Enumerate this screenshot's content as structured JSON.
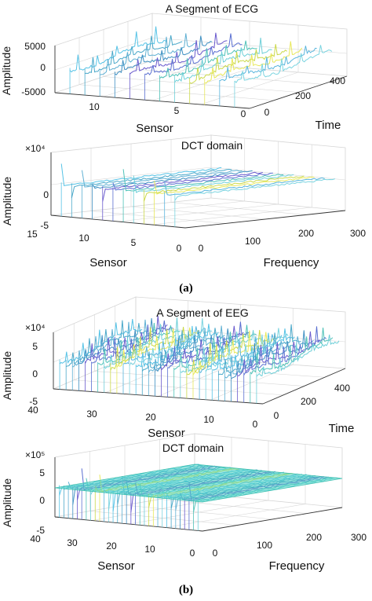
{
  "captions": {
    "a": "(a)",
    "b": "(b)"
  },
  "chart_data": [
    {
      "type": "line3d",
      "title": "A Segment of ECG",
      "xlabel": "Time",
      "ylabel": "Sensor",
      "zlabel": "Amplitude",
      "x_ticks": [
        "0",
        "200",
        "400"
      ],
      "y_ticks": [
        "0",
        "5",
        "10"
      ],
      "z_ticks": [
        "5000",
        "0",
        "-5000"
      ],
      "x_range": [
        0,
        400
      ],
      "y_range": [
        0,
        12
      ],
      "z_range": [
        -5000,
        5000
      ],
      "num_series": 12
    },
    {
      "type": "line3d",
      "title": "DCT domain",
      "exponent": "×10⁴",
      "xlabel": "Frequency",
      "ylabel": "Sensor",
      "zlabel": "Amplitude",
      "x_ticks": [
        "0",
        "100",
        "200",
        "300"
      ],
      "y_ticks": [
        "0",
        "5",
        "10",
        "15"
      ],
      "z_ticks": [
        "0",
        "-5"
      ],
      "x_range": [
        0,
        300
      ],
      "y_range": [
        0,
        15
      ],
      "z_range": [
        -5,
        5
      ],
      "num_series": 12
    },
    {
      "type": "line3d",
      "title": "A Segment of EEG",
      "exponent": "×10⁴",
      "xlabel": "Time",
      "ylabel": "Sensor",
      "zlabel": "Amplitude",
      "x_ticks": [
        "0",
        "200",
        "400"
      ],
      "y_ticks": [
        "0",
        "10",
        "20",
        "30",
        "40"
      ],
      "z_ticks": [
        "5",
        "0",
        "-5"
      ],
      "x_range": [
        0,
        400
      ],
      "y_range": [
        0,
        40
      ],
      "z_range": [
        -5,
        5
      ],
      "num_series": 32
    },
    {
      "type": "line3d",
      "title": "DCT domain",
      "exponent": "×10⁵",
      "xlabel": "Frequency",
      "ylabel": "Sensor",
      "zlabel": "Amplitude",
      "x_ticks": [
        "0",
        "100",
        "200",
        "300"
      ],
      "y_ticks": [
        "0",
        "10",
        "20",
        "30",
        "40"
      ],
      "z_ticks": [
        "5",
        "0",
        "-5"
      ],
      "x_range": [
        0,
        300
      ],
      "y_range": [
        0,
        40
      ],
      "z_range": [
        -5,
        5
      ],
      "num_series": 32
    }
  ]
}
